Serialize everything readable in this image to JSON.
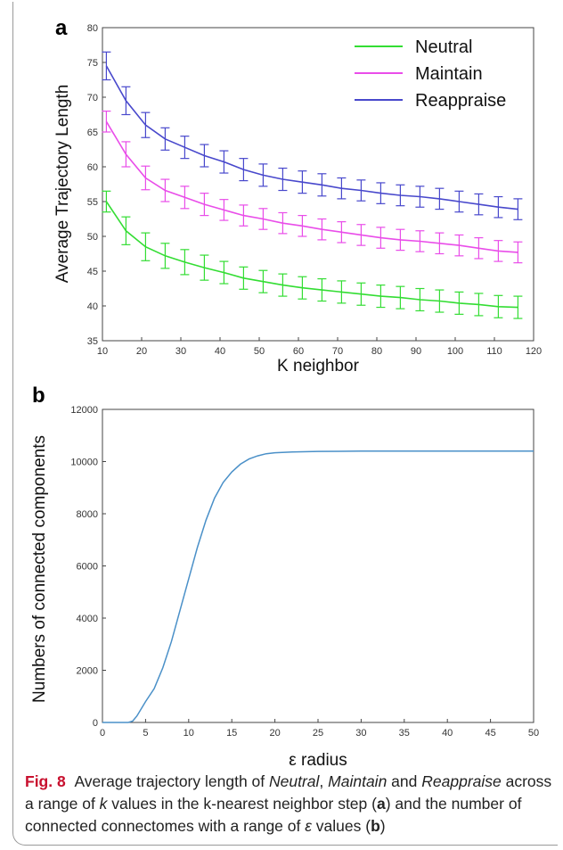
{
  "chart_data": [
    {
      "panel": "a",
      "type": "line",
      "xlabel": "K neighbor",
      "ylabel": "Average Trajectory Length",
      "xlim": [
        10,
        120
      ],
      "ylim": [
        35,
        80
      ],
      "xticks": [
        10,
        20,
        30,
        40,
        50,
        60,
        70,
        80,
        90,
        100,
        110,
        120
      ],
      "yticks": [
        35,
        40,
        45,
        50,
        55,
        60,
        65,
        70,
        75,
        80
      ],
      "legend": "top-right",
      "grid": false,
      "x": [
        11,
        16,
        21,
        26,
        31,
        36,
        41,
        46,
        51,
        56,
        61,
        66,
        71,
        76,
        81,
        86,
        91,
        96,
        101,
        106,
        111,
        116
      ],
      "series": [
        {
          "name": "Neutral",
          "color": "#33dd33",
          "values": [
            55.0,
            50.8,
            48.5,
            47.2,
            46.3,
            45.5,
            44.8,
            44.0,
            43.5,
            43.0,
            42.6,
            42.3,
            42.0,
            41.7,
            41.4,
            41.2,
            40.9,
            40.7,
            40.4,
            40.2,
            39.9,
            39.8
          ],
          "errors": [
            1.5,
            2.0,
            2.0,
            1.8,
            1.8,
            1.8,
            1.6,
            1.6,
            1.6,
            1.6,
            1.6,
            1.6,
            1.6,
            1.6,
            1.6,
            1.6,
            1.6,
            1.6,
            1.6,
            1.6,
            1.6,
            1.6
          ]
        },
        {
          "name": "Maintain",
          "color": "#e94de9",
          "values": [
            66.5,
            61.8,
            58.4,
            56.6,
            55.6,
            54.6,
            53.8,
            53.0,
            52.5,
            51.9,
            51.5,
            51.0,
            50.6,
            50.2,
            49.8,
            49.5,
            49.3,
            49.0,
            48.7,
            48.3,
            47.9,
            47.7
          ],
          "errors": [
            1.5,
            1.8,
            1.7,
            1.6,
            1.6,
            1.6,
            1.5,
            1.5,
            1.5,
            1.5,
            1.5,
            1.5,
            1.5,
            1.5,
            1.5,
            1.5,
            1.5,
            1.5,
            1.5,
            1.5,
            1.5,
            1.5
          ]
        },
        {
          "name": "Reappraise",
          "color": "#4848cc",
          "values": [
            74.5,
            69.5,
            66.0,
            64.0,
            62.8,
            61.6,
            60.7,
            59.6,
            58.8,
            58.2,
            57.8,
            57.4,
            56.9,
            56.6,
            56.2,
            55.9,
            55.7,
            55.4,
            55.0,
            54.6,
            54.2,
            53.9
          ],
          "errors": [
            2.0,
            2.0,
            1.8,
            1.6,
            1.6,
            1.6,
            1.6,
            1.6,
            1.6,
            1.6,
            1.6,
            1.6,
            1.5,
            1.5,
            1.5,
            1.5,
            1.5,
            1.5,
            1.5,
            1.5,
            1.5,
            1.5
          ]
        }
      ]
    },
    {
      "panel": "b",
      "type": "line",
      "xlabel": "ε radius",
      "ylabel": "Numbers of connected components",
      "xlim": [
        0,
        50
      ],
      "ylim": [
        0,
        12000
      ],
      "xticks": [
        0,
        5,
        10,
        15,
        20,
        25,
        30,
        35,
        40,
        45,
        50
      ],
      "yticks": [
        0,
        2000,
        4000,
        6000,
        8000,
        10000,
        12000
      ],
      "grid": false,
      "series": [
        {
          "name": "",
          "color": "#4a90c8",
          "x": [
            0,
            1,
            2,
            3,
            3.5,
            4,
            5,
            6,
            7,
            8,
            9,
            10,
            11,
            12,
            13,
            14,
            15,
            16,
            17,
            18,
            19,
            20,
            22,
            25,
            30,
            35,
            40,
            45,
            50
          ],
          "values": [
            0,
            0,
            0,
            0,
            50,
            250,
            800,
            1300,
            2100,
            3100,
            4300,
            5500,
            6700,
            7750,
            8600,
            9200,
            9600,
            9900,
            10100,
            10220,
            10300,
            10340,
            10370,
            10390,
            10400,
            10400,
            10400,
            10400,
            10400
          ]
        }
      ]
    }
  ],
  "caption": {
    "fig_label": "Fig. 8",
    "text_1": "Average trajectory length of ",
    "neutral": "Neutral",
    "sep_1": ", ",
    "maintain": "Maintain",
    "sep_2": " and ",
    "reappraise": "Reappraise",
    "text_2": " across a range of ",
    "k": "k",
    "text_3": " values in the k-nearest neighbor step (",
    "a": "a",
    "text_4": ") and the number of connected connectomes with a range of ",
    "eps": "ε",
    "text_5": " values (",
    "b": "b",
    "text_6": ")"
  }
}
